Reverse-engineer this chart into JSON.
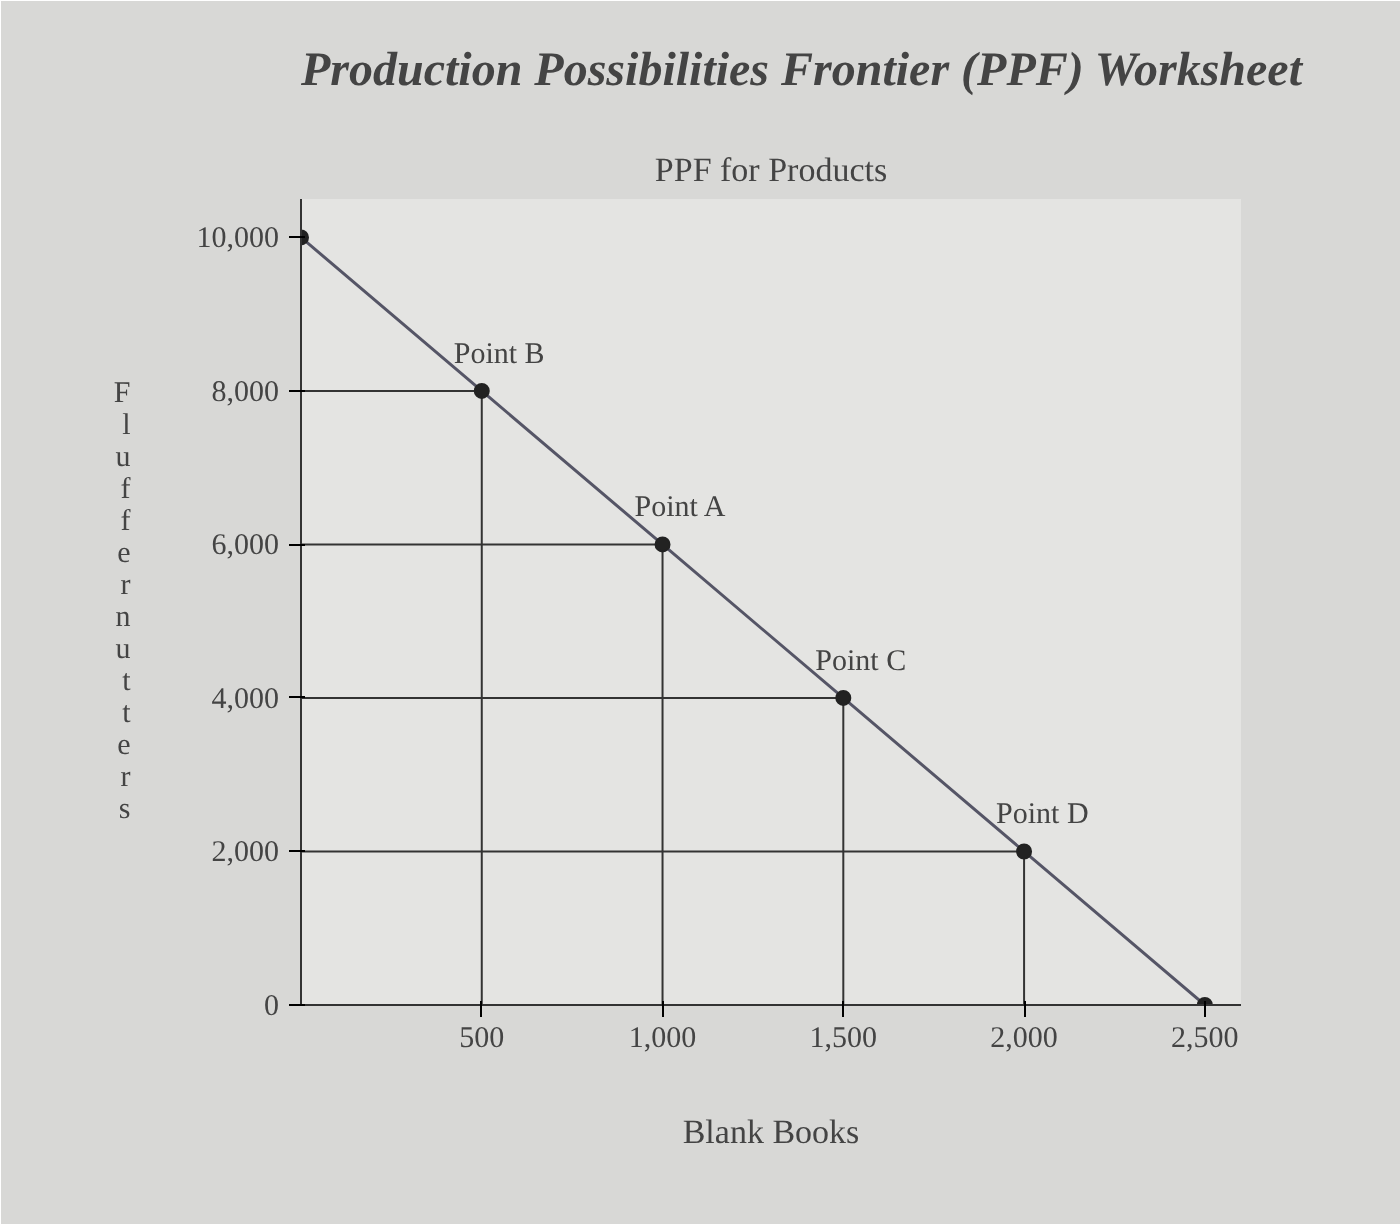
{
  "chart_data": {
    "type": "line",
    "title": "Production Possibilities Frontier (PPF) Worksheet",
    "subtitle": "PPF for Products",
    "xlabel": "Blank Books",
    "ylabel": "Fluffernutters",
    "x": [
      0,
      500,
      1000,
      1500,
      2000,
      2500
    ],
    "series": [
      {
        "color": "#555566",
        "values": [
          10000,
          8000,
          6000,
          4000,
          2000,
          0
        ]
      }
    ],
    "marker": "circle",
    "xlim": [
      0,
      2600
    ],
    "ylim": [
      0,
      10500
    ],
    "xticks": [
      500,
      {
        "value": 1000,
        "label": "1,000"
      },
      {
        "value": 1500,
        "label": "1,500"
      },
      {
        "value": 2000,
        "label": "2,000"
      },
      {
        "value": 2500,
        "label": "2,500"
      }
    ],
    "yticks": [
      0,
      {
        "value": 2000,
        "label": "2,000"
      },
      {
        "value": 4000,
        "label": "4,000"
      },
      {
        "value": 6000,
        "label": "6,000"
      },
      {
        "value": 8000,
        "label": "8,000"
      },
      {
        "value": 10000,
        "label": "10,000"
      }
    ],
    "annotations": [
      {
        "text": "Point B",
        "x": 500,
        "y": 8000
      },
      {
        "text": "Point A",
        "x": 1000,
        "y": 6000
      },
      {
        "text": "Point C",
        "x": 1500,
        "y": 4000
      },
      {
        "text": "Point D",
        "x": 2000,
        "y": 2000
      }
    ]
  }
}
